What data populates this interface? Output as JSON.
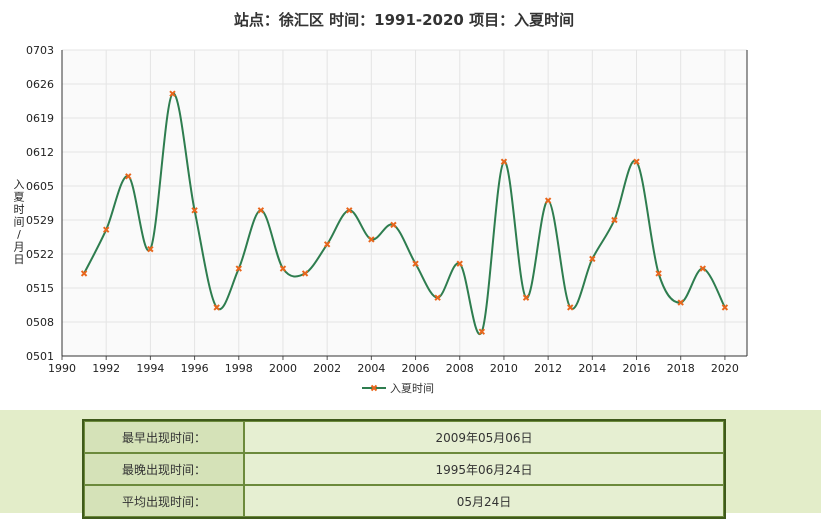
{
  "chart_data": {
    "type": "line",
    "title": "站点：徐汇区 时间：1991-2020   项目：入夏时间",
    "ylabel": "入夏时间/月日",
    "series": [
      {
        "name": "入夏时间",
        "color": "#2e7d4f",
        "marker_color": "#e8661c",
        "x": [
          1991,
          1992,
          1993,
          1994,
          1995,
          1996,
          1997,
          1998,
          1999,
          2000,
          2001,
          2002,
          2003,
          2004,
          2005,
          2006,
          2007,
          2008,
          2009,
          2010,
          2011,
          2012,
          2013,
          2014,
          2015,
          2016,
          2017,
          2018,
          2019,
          2020
        ],
        "y": [
          "05-18",
          "05-27",
          "06-07",
          "05-23",
          "06-24",
          "05-31",
          "05-11",
          "05-19",
          "05-31",
          "05-19",
          "05-18",
          "05-24",
          "05-31",
          "05-25",
          "05-28",
          "05-20",
          "05-13",
          "05-20",
          "05-06",
          "06-10",
          "05-13",
          "06-02",
          "05-11",
          "05-21",
          "05-29",
          "06-10",
          "05-18",
          "05-12",
          "05-19",
          "05-11"
        ]
      }
    ],
    "x_ticks": [
      "1990",
      "1992",
      "1994",
      "1996",
      "1998",
      "2000",
      "2002",
      "2004",
      "2006",
      "2008",
      "2010",
      "2012",
      "2014",
      "2016",
      "2018",
      "2020"
    ],
    "xlim": [
      1990,
      2021
    ],
    "y_ticks": [
      "0703",
      "0626",
      "0619",
      "0612",
      "0605",
      "0529",
      "0522",
      "0515",
      "0508",
      "0501"
    ],
    "ylim": [
      "05-01",
      "07-03"
    ],
    "grid": true,
    "smooth": true,
    "legend": "bottom"
  },
  "stats": [
    {
      "label": "最早出现时间：",
      "value": "2009年05月06日"
    },
    {
      "label": "最晚出现时间：",
      "value": "1995年06月24日"
    },
    {
      "label": "平均出现时间：",
      "value": "05月24日"
    }
  ]
}
